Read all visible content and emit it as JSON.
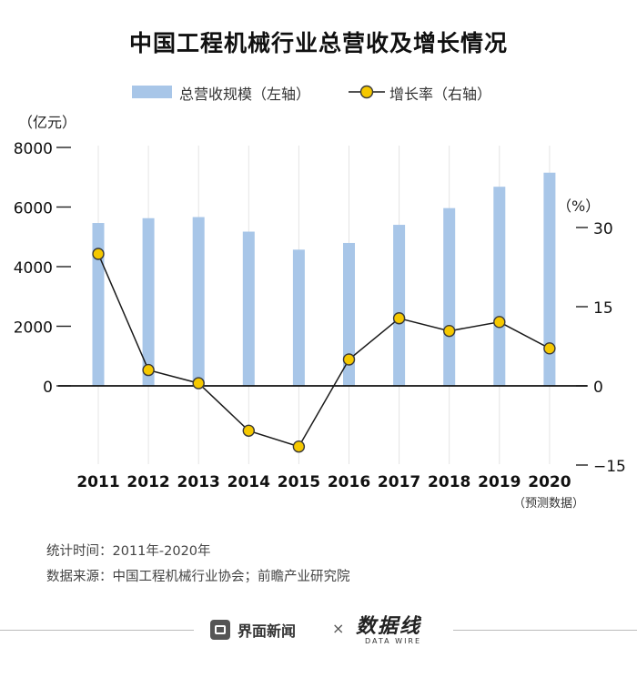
{
  "chart_data": {
    "type": "bar+line",
    "title": "中国工程机械行业总营收及增长情况",
    "categories": [
      "2011",
      "2012",
      "2013",
      "2014",
      "2015",
      "2016",
      "2017",
      "2018",
      "2019",
      "2020"
    ],
    "series": [
      {
        "name": "总营收规模（左轴）",
        "type": "bar",
        "axis": "left",
        "values": [
          5465,
          5626,
          5663,
          5175,
          4570,
          4795,
          5403,
          5964,
          6681,
          7153
        ]
      },
      {
        "name": "增长率（右轴）",
        "type": "line",
        "axis": "right",
        "values": [
          25.0,
          3.0,
          0.5,
          -8.5,
          -11.5,
          5.0,
          12.8,
          10.4,
          12.1,
          7.1
        ]
      }
    ],
    "left_axis": {
      "unit": "（亿元）",
      "ticks": [
        0,
        2000,
        4000,
        6000,
        8000
      ],
      "range": [
        -2750,
        8000
      ]
    },
    "right_axis": {
      "unit": "（%）",
      "ticks": [
        -15,
        0,
        15,
        30
      ],
      "range": [
        -15,
        30
      ]
    },
    "x_note": "（预测数据）",
    "colors": {
      "bar": "#a8c6e8",
      "line": "#1a1a1a",
      "marker_fill": "#f5c800",
      "marker_stroke": "#3a3a3a"
    }
  },
  "footer": {
    "stat_time": "统计时间：2011年-2020年",
    "source": "数据来源：中国工程机械行业协会；前瞻产业研究院"
  },
  "brand": {
    "jiemian": "界面新闻",
    "separator": "×",
    "datawire_cn": "数据线",
    "datawire_en": "DATA WIRE"
  }
}
